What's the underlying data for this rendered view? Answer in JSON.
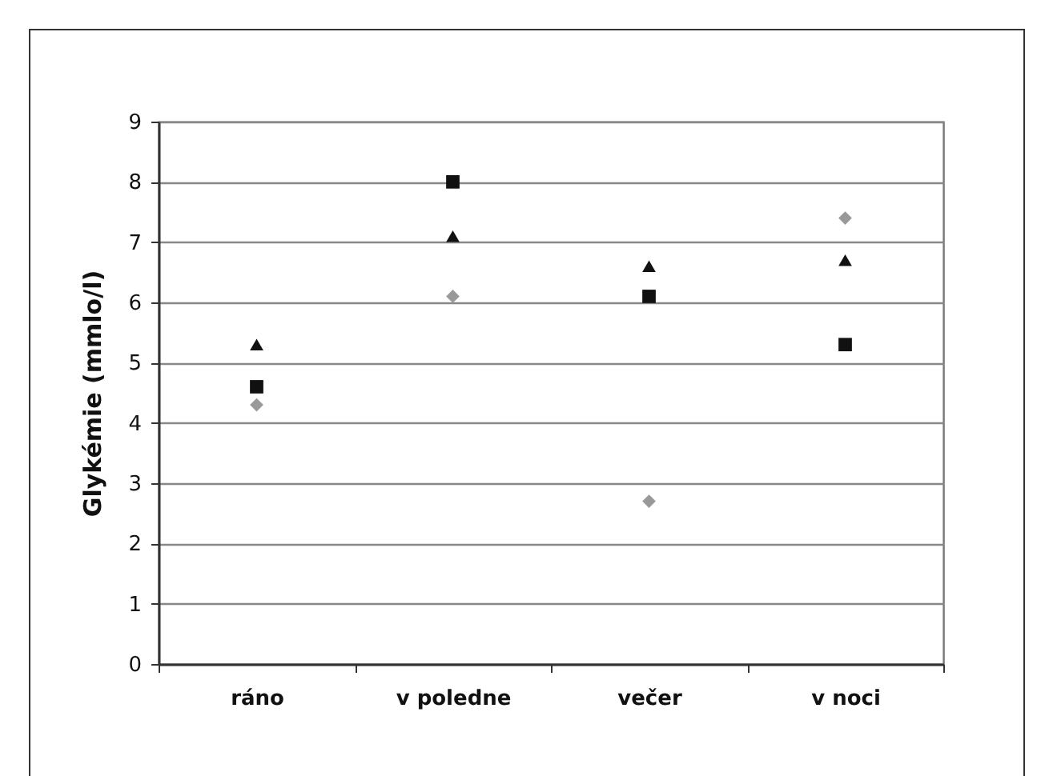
{
  "chart_data": {
    "type": "scatter",
    "ylabel": "Glykémie (mmlo/l)",
    "categories": [
      "ráno",
      "v poledne",
      "večer",
      "v noci"
    ],
    "ylim": [
      0,
      9
    ],
    "yticks": [
      0,
      1,
      2,
      3,
      4,
      5,
      6,
      7,
      8,
      9
    ],
    "grid": "y",
    "series": [
      {
        "color": "#111111",
        "marker": "triangle",
        "values": [
          5.3,
          7.1,
          6.6,
          6.7
        ]
      },
      {
        "color": "#111111",
        "marker": "square",
        "values": [
          4.6,
          8.0,
          6.1,
          5.3
        ]
      },
      {
        "color": "#999999",
        "marker": "diamond",
        "values": [
          4.3,
          6.1,
          2.7,
          7.4
        ]
      }
    ]
  }
}
